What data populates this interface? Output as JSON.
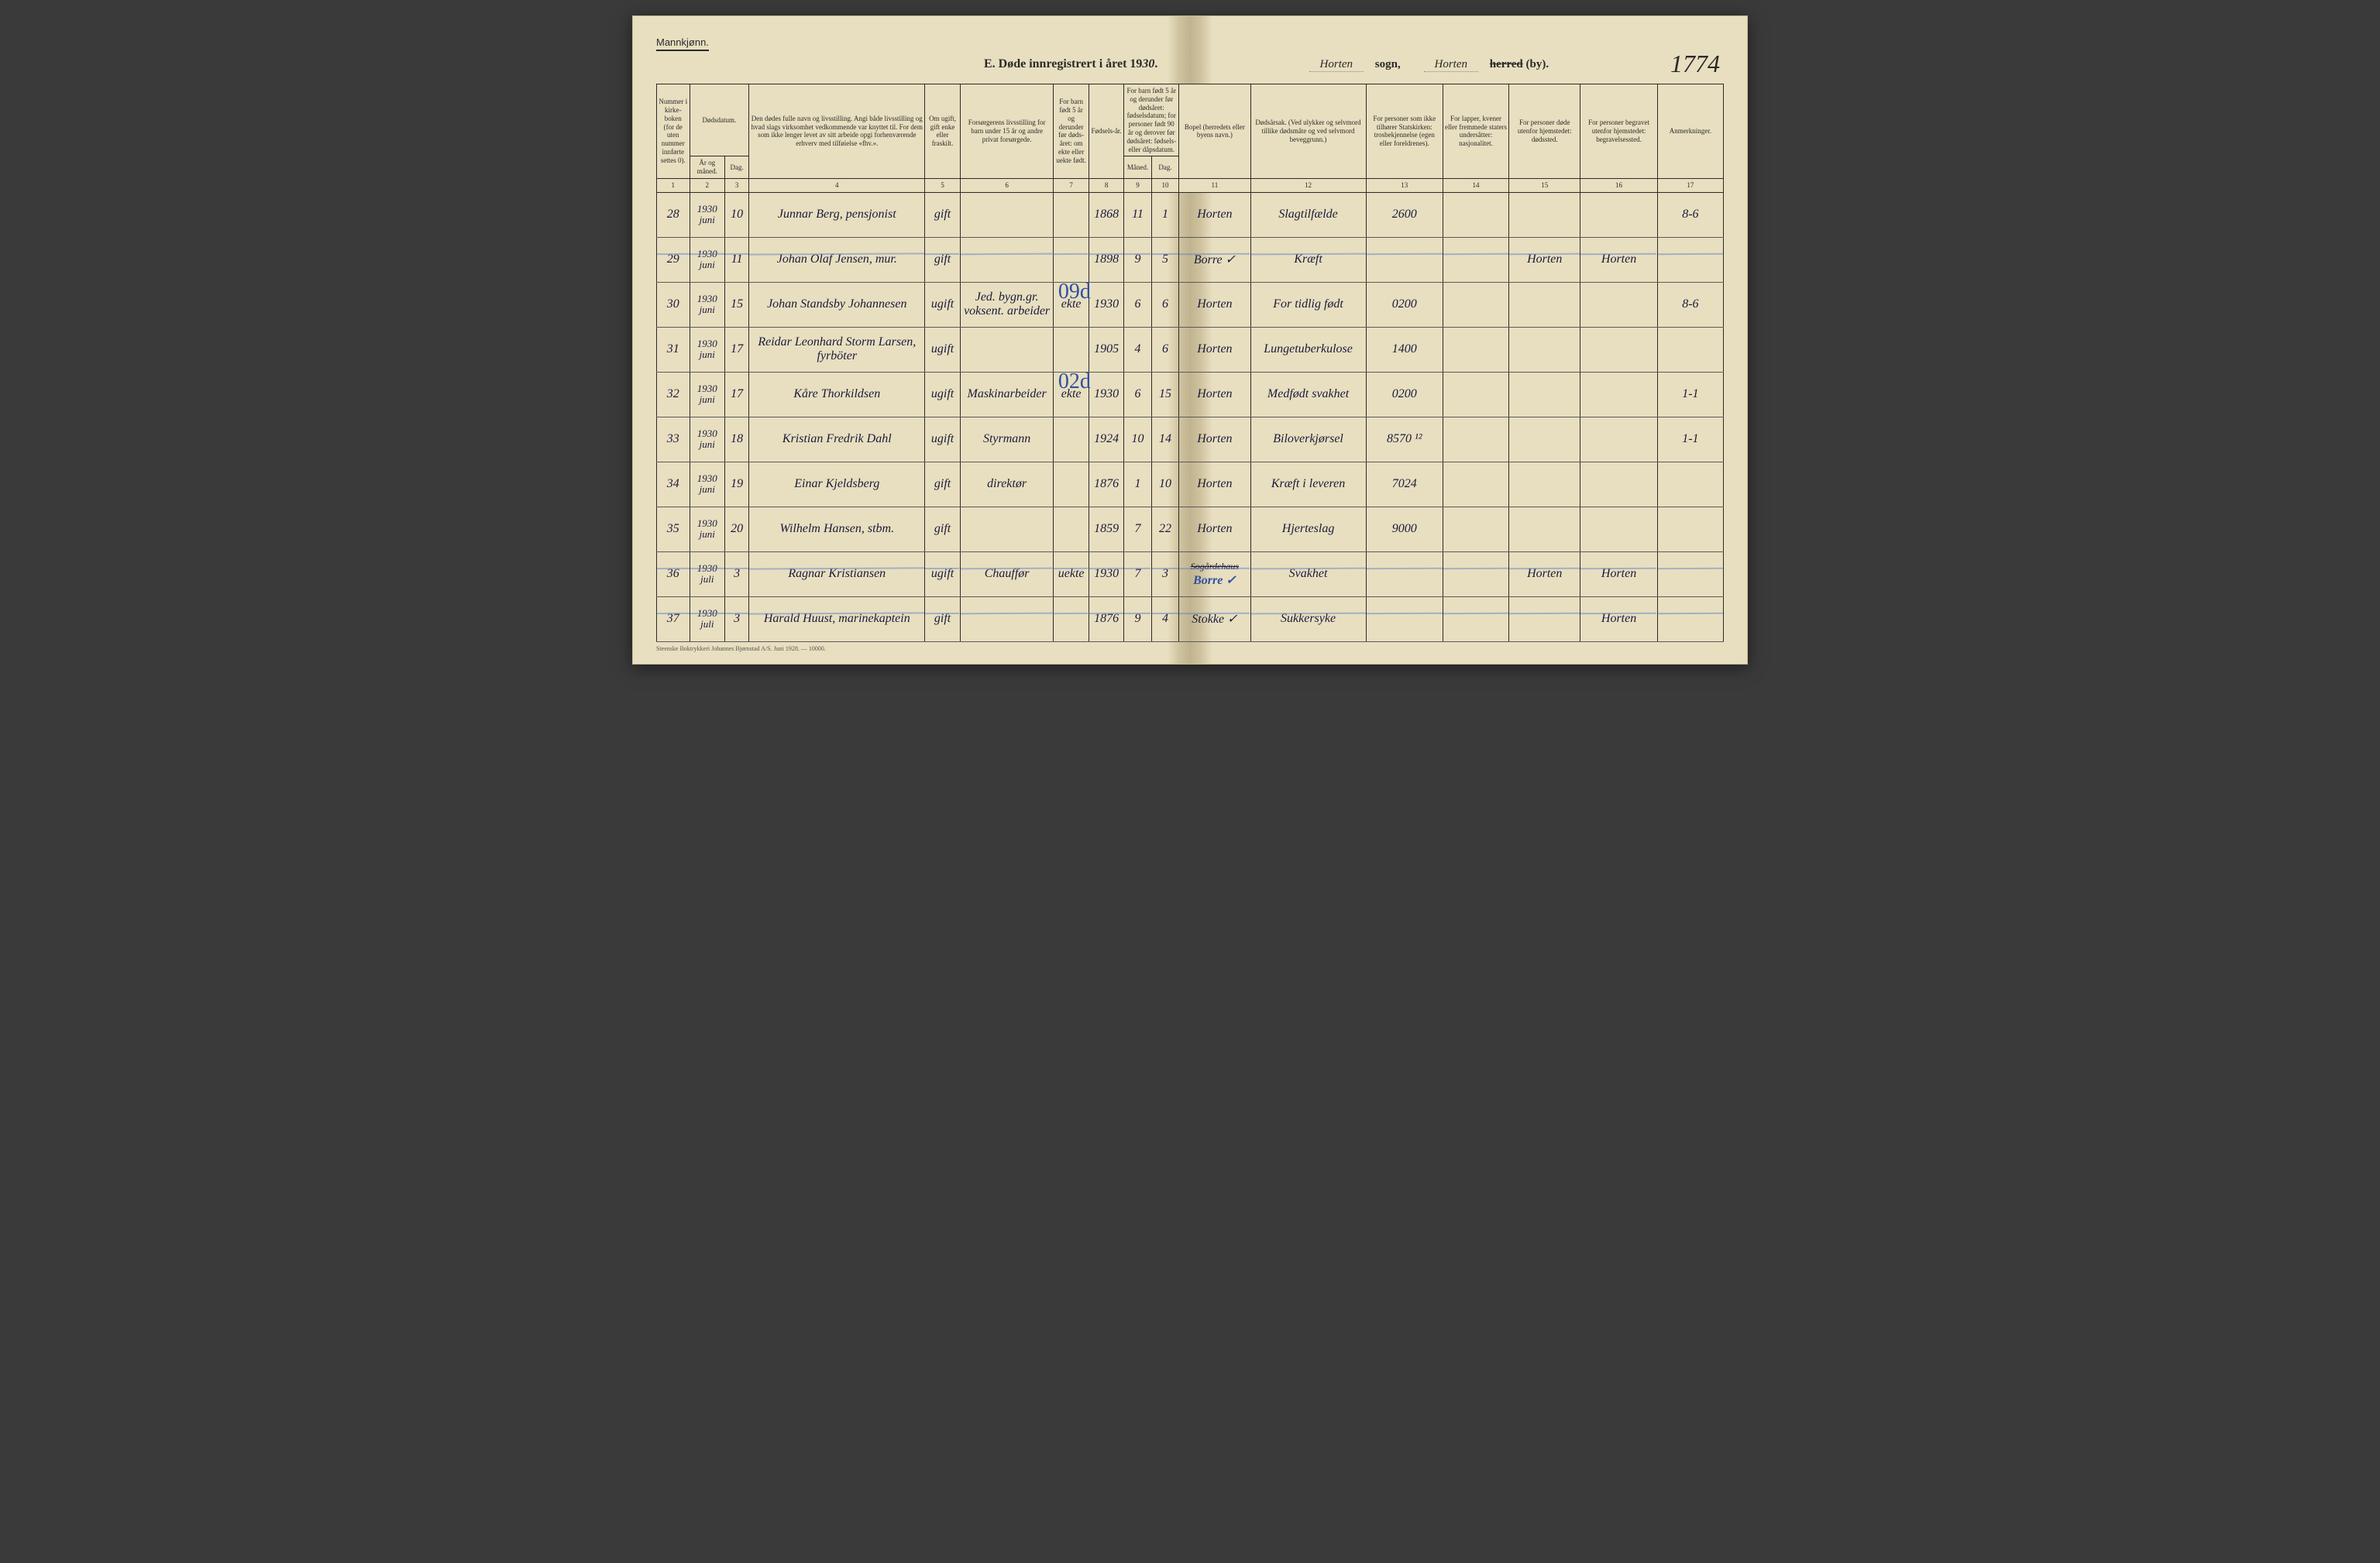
{
  "gender_label": "Mannkjønn.",
  "title_prefix": "E.  Døde innregistrert i året 19",
  "title_year_hand": "30",
  "header_sogn_label": "sogn,",
  "header_sogn_value": "Horten",
  "header_herred_label": "herred (by).",
  "header_herred_value": "Horten",
  "header_herred_struck": "herred",
  "page_number": "1774",
  "footer_text": "Steenske Boktrykkeri Johannes Bjørnstad A/S.  Juni 1928. — 10000.",
  "columns": {
    "c1": "Nummer i kirke-boken (for de uten nummer innførte settes 0).",
    "c2_group": "Dødsdatum.",
    "c2": "År og måned.",
    "c3": "Dag.",
    "c4": "Den dødes fulle navn og livsstilling.\nAngi både livsstilling og hvad slags virksomhet vedkommende var knyttet til.\nFor dem som ikke lenger levet av sitt arbeide opgi forhenværende erhverv med tilføielse «fhv.».",
    "c5": "Om ugift, gift enke eller fraskilt.",
    "c6": "Forsørgerens livsstilling\nfor barn under 15 år og andre privat forsørgede.",
    "c7": "For barn født 5 år og derunder før døds-året: om ekte eller uekte født.",
    "c8": "Fødsels-år.",
    "c9_group": "For barn født 5 år og derunder før dødsåret: fødselsdatum; for personer født 90 år og derover før dødsåret: fødsels- eller dåpsdatum.",
    "c9": "Måned.",
    "c10": "Dag.",
    "c11": "Bopel\n(herredets eller byens navn.)",
    "c12": "Dødsårsak.\n(Ved ulykker og selvmord tillike dødsmåte og ved selvmord beveggrunn.)",
    "c13": "For personer som ikke tilhører Statskirken: trosbekjennelse (egen eller foreldrenes).",
    "c14": "For lapper, kvener eller fremmede staters undersåtter: nasjonalitet.",
    "c15": "For personer døde utenfor hjemstedet: dødssted.",
    "c16": "For personer begravet utenfor hjemstedet: begravelsessted.",
    "c17": "Anmerkninger."
  },
  "colnums": [
    "1",
    "2",
    "3",
    "4",
    "5",
    "6",
    "7",
    "8",
    "9",
    "10",
    "11",
    "12",
    "13",
    "14",
    "15",
    "16",
    "17"
  ],
  "rows": [
    {
      "n": "28",
      "ym": "1930\njuni",
      "d": "10",
      "name": "Junnar Berg, pensjonist",
      "stat": "gift",
      "fors": "",
      "ekte": "",
      "faar": "1868",
      "fm": "11",
      "fd": "1",
      "bopel": "Horten",
      "cause": "Slagtilfælde",
      "c13": "2600",
      "c14": "",
      "c15": "",
      "c16": "",
      "c17": "8-6"
    },
    {
      "n": "29",
      "ym": "1930\njuni",
      "d": "11",
      "name": "Johan Olaf Jensen, mur.",
      "stat": "gift",
      "fors": "",
      "ekte": "",
      "faar": "1898",
      "fm": "9",
      "fd": "5",
      "bopel": "Borre ✓",
      "cause": "Kræft",
      "c13": "",
      "c14": "",
      "c15": "Horten",
      "c16": "Horten",
      "c17": "",
      "wavy": true
    },
    {
      "n": "30",
      "ym": "1930\njuni",
      "d": "15",
      "name": "Johan Standsby Johannesen",
      "stat": "ugift",
      "fors": "Jed. bygn.gr. voksent. arbeider",
      "ekte": "ekte",
      "faar": "1930",
      "fm": "6",
      "fd": "6",
      "bopel": "Horten",
      "cause": "For tidlig født",
      "c13": "0200",
      "c14": "",
      "c15": "",
      "c16": "",
      "c17": "8-6",
      "big": "09d"
    },
    {
      "n": "31",
      "ym": "1930\njuni",
      "d": "17",
      "name": "Reidar Leonhard Storm Larsen, fyrböter",
      "stat": "ugift",
      "fors": "",
      "ekte": "",
      "faar": "1905",
      "fm": "4",
      "fd": "6",
      "bopel": "Horten",
      "cause": "Lungetuberkulose",
      "c13": "1400",
      "c14": "",
      "c15": "",
      "c16": "",
      "c17": ""
    },
    {
      "n": "32",
      "ym": "1930\njuni",
      "d": "17",
      "name": "Kåre Thorkildsen",
      "stat": "ugift",
      "fors": "Maskinarbeider",
      "ekte": "ekte",
      "faar": "1930",
      "fm": "6",
      "fd": "15",
      "bopel": "Horten",
      "cause": "Medfødt svakhet",
      "c13": "0200",
      "c14": "",
      "c15": "",
      "c16": "",
      "c17": "1-1",
      "big": "02d"
    },
    {
      "n": "33",
      "ym": "1930\njuni",
      "d": "18",
      "name": "Kristian Fredrik Dahl",
      "stat": "ugift",
      "fors": "Styrmann",
      "ekte": "",
      "faar": "1924",
      "fm": "10",
      "fd": "14",
      "bopel": "Horten",
      "cause": "Biloverkjørsel",
      "c13": "8570 ¹²",
      "c14": "",
      "c15": "",
      "c16": "",
      "c17": "1-1"
    },
    {
      "n": "34",
      "ym": "1930\njuni",
      "d": "19",
      "name": "Einar Kjeldsberg",
      "stat": "gift",
      "fors": "direktør",
      "ekte": "",
      "faar": "1876",
      "fm": "1",
      "fd": "10",
      "bopel": "Horten",
      "cause": "Kræft i leveren",
      "c13": "7024",
      "c14": "",
      "c15": "",
      "c16": "",
      "c17": ""
    },
    {
      "n": "35",
      "ym": "1930\njuni",
      "d": "20",
      "name": "Wilhelm Hansen, stbm.",
      "stat": "gift",
      "fors": "",
      "ekte": "",
      "faar": "1859",
      "fm": "7",
      "fd": "22",
      "bopel": "Horten",
      "cause": "Hjerteslag",
      "c13": "9000",
      "c14": "",
      "c15": "",
      "c16": "",
      "c17": ""
    },
    {
      "n": "36",
      "ym": "1930\njuli",
      "d": "3",
      "name": "Ragnar Kristiansen",
      "stat": "ugift",
      "fors": "Chauffør",
      "ekte": "uekte",
      "faar": "1930",
      "fm": "7",
      "fd": "3",
      "bopel": "Borre ✓",
      "cause": "Svakhet",
      "c13": "",
      "c14": "",
      "c15": "Horten",
      "c16": "Horten",
      "c17": "",
      "wavy": true,
      "strike_bopel": "Sogårdehaus"
    },
    {
      "n": "37",
      "ym": "1930\njuli",
      "d": "3",
      "name": "Harald Huust, marinekaptein",
      "stat": "gift",
      "fors": "",
      "ekte": "",
      "faar": "1876",
      "fm": "9",
      "fd": "4",
      "bopel": "Stokke ✓",
      "cause": "Sukkersyke",
      "c13": "",
      "c14": "",
      "c15": "",
      "c16": "Horten",
      "c17": "",
      "wavy": true
    }
  ],
  "col_widths_pct": [
    3.0,
    3.2,
    2.2,
    16.0,
    3.2,
    8.5,
    3.2,
    3.2,
    2.5,
    2.5,
    6.5,
    10.5,
    7.0,
    6.0,
    6.5,
    7.0,
    6.0
  ]
}
